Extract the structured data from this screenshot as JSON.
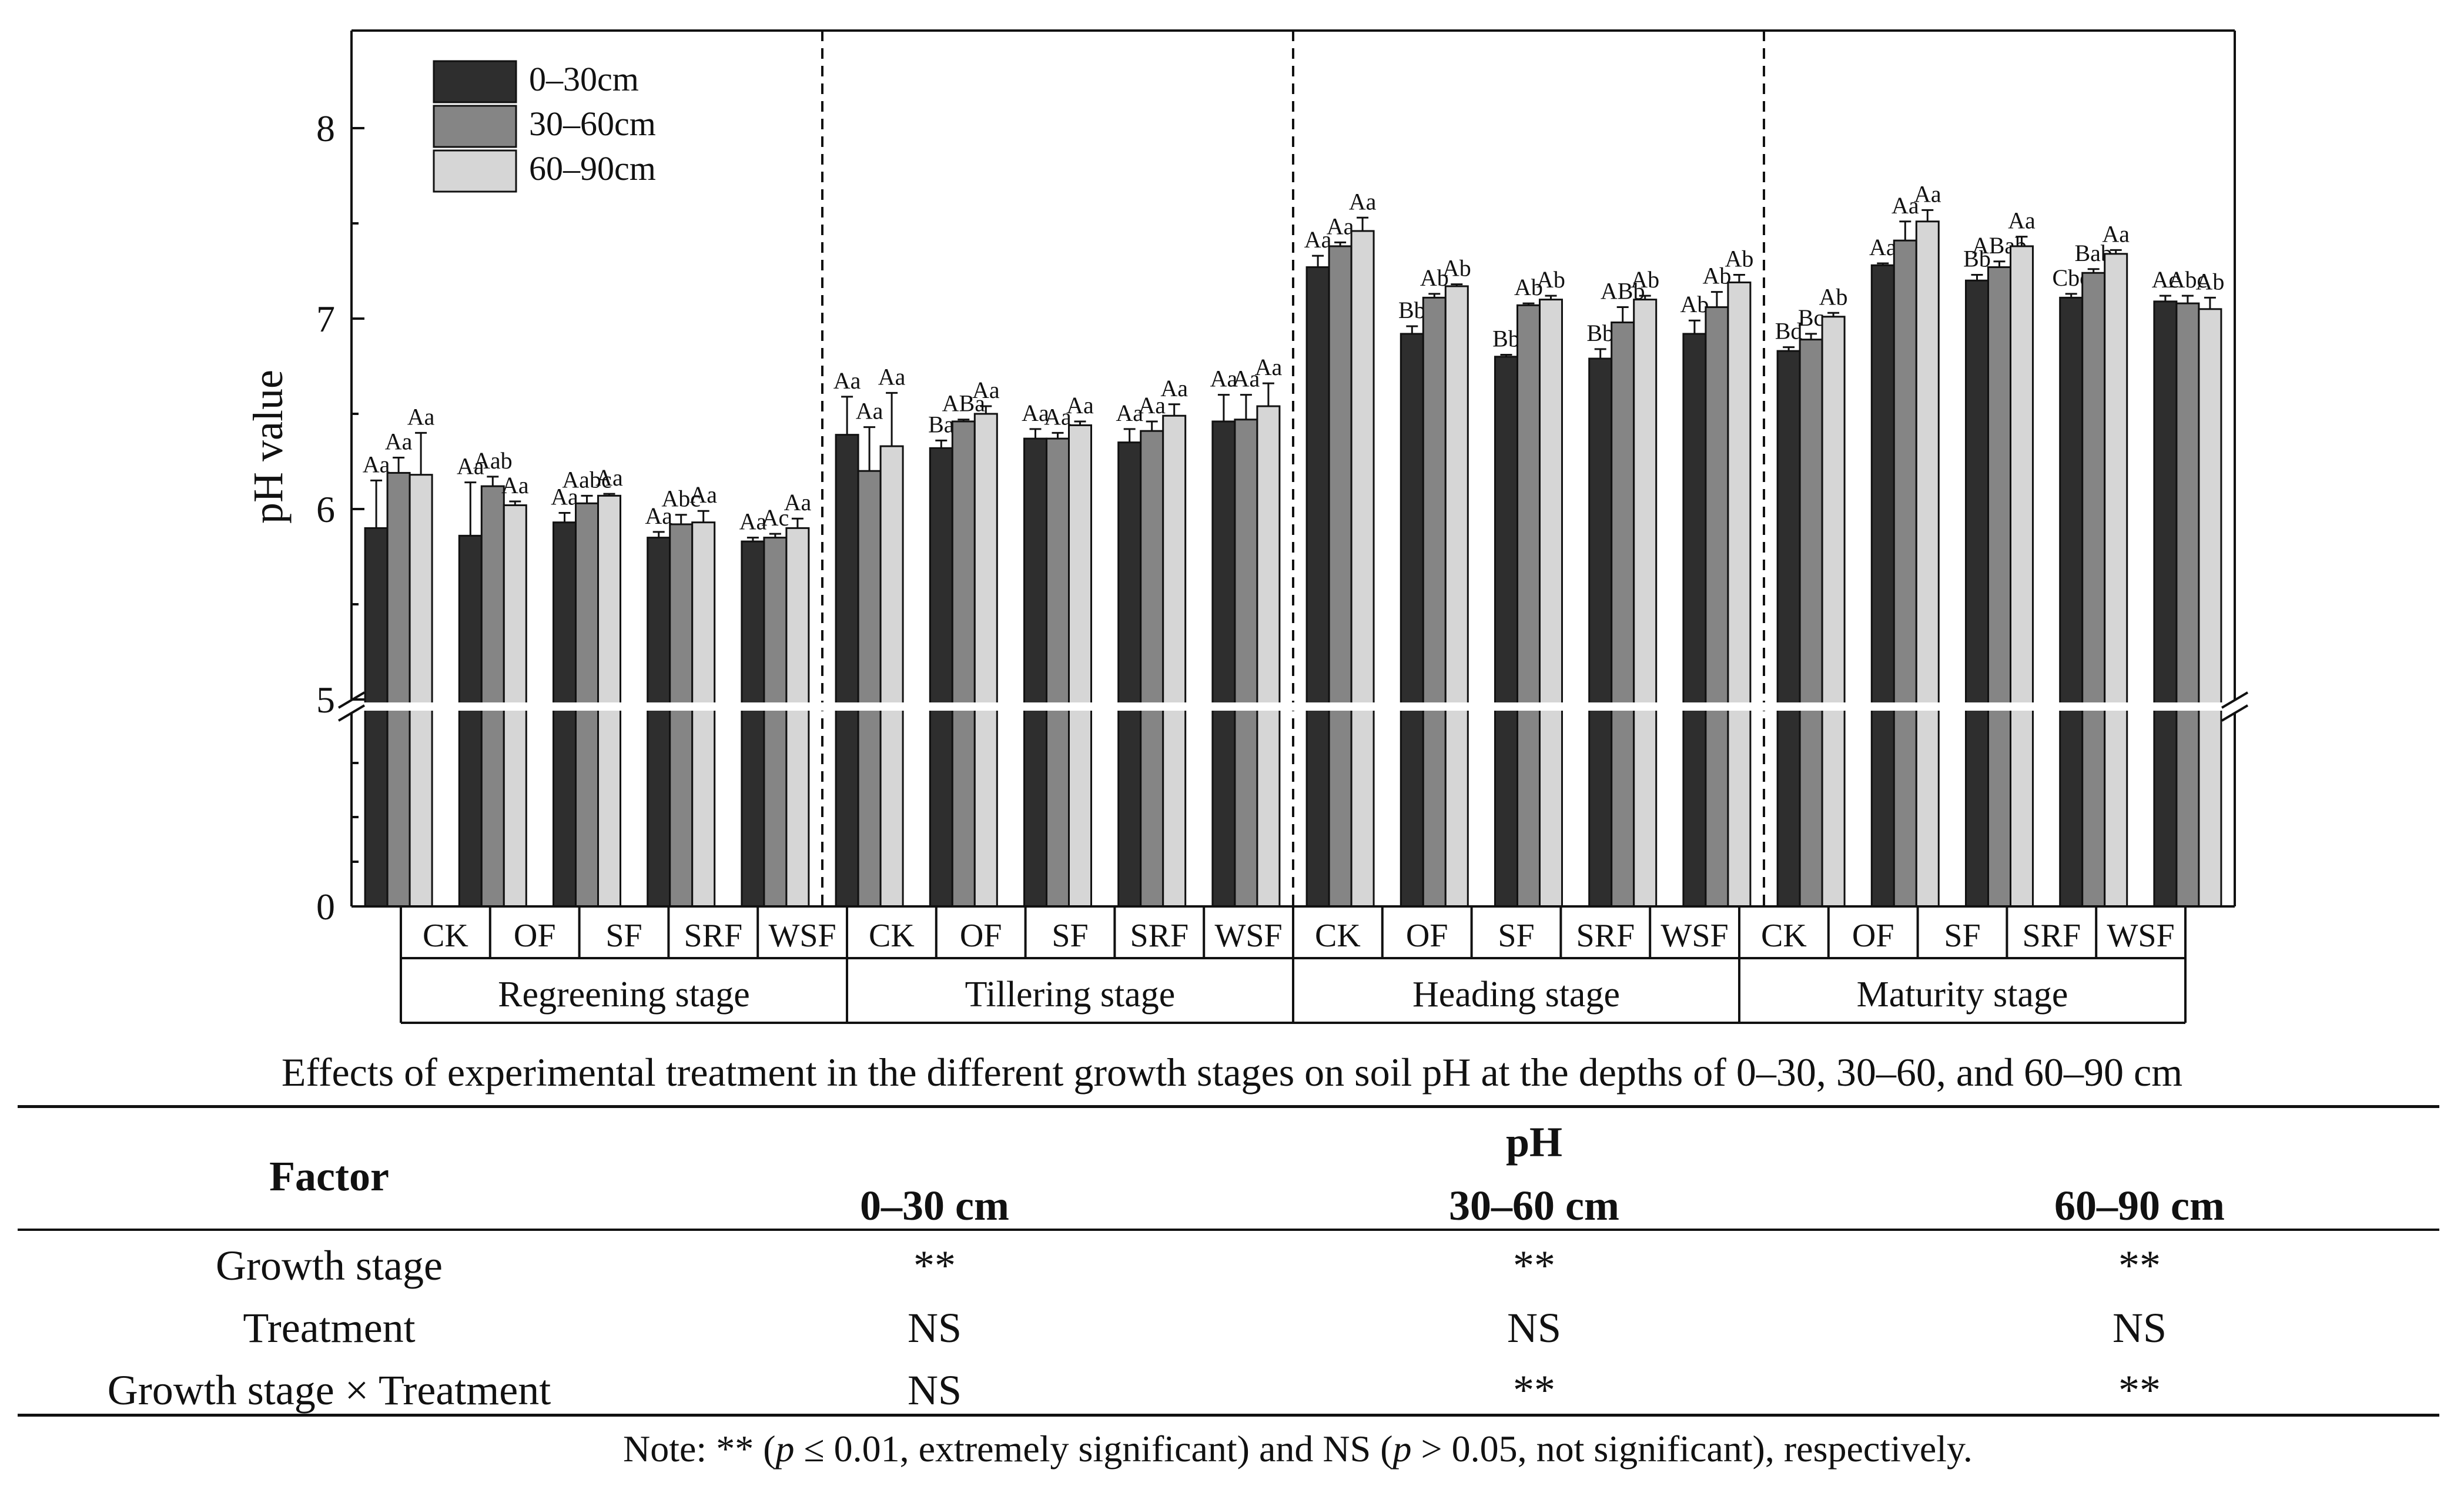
{
  "chart_data": {
    "type": "bar",
    "ylabel": "pH value",
    "yticks_upper": [
      "5",
      "6",
      "7",
      "8"
    ],
    "yticks_lower": [
      "0"
    ],
    "ylim_upper": [
      5,
      8.5
    ],
    "axis_break": true,
    "legend_position": "top-left",
    "series": [
      {
        "name": "0–30cm",
        "color": "#2e2e2e"
      },
      {
        "name": "30–60cm",
        "color": "#858585"
      },
      {
        "name": "60–90cm",
        "color": "#d6d6d6"
      }
    ],
    "stages": [
      {
        "name": "Regreening stage",
        "groups": [
          {
            "treatment": "CK",
            "values": [
              5.9,
              6.19,
              6.18
            ],
            "errors": [
              0.25,
              0.08,
              0.22
            ],
            "labels": [
              "Aa",
              "Aa",
              "Aa"
            ]
          },
          {
            "treatment": "OF",
            "values": [
              5.86,
              6.12,
              6.02
            ],
            "errors": [
              0.28,
              0.05,
              0.02
            ],
            "labels": [
              "Aa",
              "Aab",
              "Aa"
            ]
          },
          {
            "treatment": "SF",
            "values": [
              5.93,
              6.03,
              6.07
            ],
            "errors": [
              0.05,
              0.04,
              0.01
            ],
            "labels": [
              "Aa",
              "Aabc",
              "Aa"
            ]
          },
          {
            "treatment": "SRF",
            "values": [
              5.85,
              5.92,
              5.93
            ],
            "errors": [
              0.03,
              0.05,
              0.06
            ],
            "labels": [
              "Aa",
              "Abc",
              "Aa"
            ]
          },
          {
            "treatment": "WSF",
            "values": [
              5.83,
              5.85,
              5.9
            ],
            "errors": [
              0.02,
              0.02,
              0.05
            ],
            "labels": [
              "Aa",
              "Ac",
              "Aa"
            ]
          }
        ]
      },
      {
        "name": "Tillering stage",
        "groups": [
          {
            "treatment": "CK",
            "values": [
              6.39,
              6.2,
              6.33
            ],
            "errors": [
              0.2,
              0.23,
              0.28
            ],
            "labels": [
              "Aa",
              "Aa",
              "Aa"
            ]
          },
          {
            "treatment": "OF",
            "values": [
              6.32,
              6.46,
              6.5
            ],
            "errors": [
              0.04,
              0.01,
              0.04
            ],
            "labels": [
              "Ba",
              "ABa",
              "Aa"
            ]
          },
          {
            "treatment": "SF",
            "values": [
              6.37,
              6.37,
              6.44
            ],
            "errors": [
              0.05,
              0.03,
              0.02
            ],
            "labels": [
              "Aa",
              "Aa",
              "Aa"
            ]
          },
          {
            "treatment": "SRF",
            "values": [
              6.35,
              6.41,
              6.49
            ],
            "errors": [
              0.07,
              0.05,
              0.06
            ],
            "labels": [
              "Aa",
              "Aa",
              "Aa"
            ]
          },
          {
            "treatment": "WSF",
            "values": [
              6.46,
              6.47,
              6.54
            ],
            "errors": [
              0.14,
              0.13,
              0.12
            ],
            "labels": [
              "Aa",
              "Aa",
              "Aa"
            ]
          }
        ]
      },
      {
        "name": "Heading stage",
        "groups": [
          {
            "treatment": "CK",
            "values": [
              7.27,
              7.38,
              7.46
            ],
            "errors": [
              0.06,
              0.02,
              0.07
            ],
            "labels": [
              "Aa",
              "Aa",
              "Aa"
            ]
          },
          {
            "treatment": "OF",
            "values": [
              6.92,
              7.11,
              7.17
            ],
            "errors": [
              0.04,
              0.02,
              0.01
            ],
            "labels": [
              "Bb",
              "Ab",
              "Ab"
            ]
          },
          {
            "treatment": "SF",
            "values": [
              6.8,
              7.07,
              7.1
            ],
            "errors": [
              0.01,
              0.01,
              0.02
            ],
            "labels": [
              "Bb",
              "Ab",
              "Ab"
            ]
          },
          {
            "treatment": "SRF",
            "values": [
              6.79,
              6.98,
              7.1
            ],
            "errors": [
              0.05,
              0.08,
              0.02
            ],
            "labels": [
              "Bb",
              "ABb",
              "Ab"
            ]
          },
          {
            "treatment": "WSF",
            "values": [
              6.92,
              7.06,
              7.19
            ],
            "errors": [
              0.07,
              0.08,
              0.04
            ],
            "labels": [
              "Ab",
              "Ab",
              "Ab"
            ]
          }
        ]
      },
      {
        "name": "Maturity stage",
        "groups": [
          {
            "treatment": "CK",
            "values": [
              6.83,
              6.89,
              7.01
            ],
            "errors": [
              0.02,
              0.03,
              0.02
            ],
            "labels": [
              "Bd",
              "Bc",
              "Ab"
            ]
          },
          {
            "treatment": "OF",
            "values": [
              7.28,
              7.41,
              7.51
            ],
            "errors": [
              0.01,
              0.1,
              0.06
            ],
            "labels": [
              "Aa",
              "Aa",
              "Aa"
            ]
          },
          {
            "treatment": "SF",
            "values": [
              7.2,
              7.27,
              7.38
            ],
            "errors": [
              0.03,
              0.03,
              0.05
            ],
            "labels": [
              "Bb",
              "ABab",
              "Aa"
            ]
          },
          {
            "treatment": "SRF",
            "values": [
              7.11,
              7.24,
              7.34
            ],
            "errors": [
              0.02,
              0.02,
              0.02
            ],
            "labels": [
              "Cbc",
              "Bab",
              "Aa"
            ]
          },
          {
            "treatment": "WSF",
            "values": [
              7.09,
              7.08,
              7.05
            ],
            "errors": [
              0.03,
              0.04,
              0.06
            ],
            "labels": [
              "Ac",
              "Abc",
              "Ab"
            ]
          }
        ]
      }
    ]
  },
  "caption": "Effects of experimental treatment in the different growth stages on soil pH at the depths of 0–30, 30–60, and 60–90 cm",
  "table": {
    "factor_header": "Factor",
    "ph_header": "pH",
    "depth_headers": [
      "0–30 cm",
      "30–60 cm",
      "60–90 cm"
    ],
    "rows": [
      {
        "factor": "Growth stage",
        "values": [
          "**",
          "**",
          "**"
        ]
      },
      {
        "factor": "Treatment",
        "values": [
          "NS",
          "NS",
          "NS"
        ]
      },
      {
        "factor": "Growth stage × Treatment",
        "values": [
          "NS",
          "**",
          "**"
        ]
      }
    ]
  },
  "note": {
    "prefix": "Note: ** (",
    "p1": "p",
    "mid1": " ≤ 0.01, extremely significant) and NS (",
    "p2": "p",
    "mid2": " > 0.05, not significant), respectively."
  }
}
